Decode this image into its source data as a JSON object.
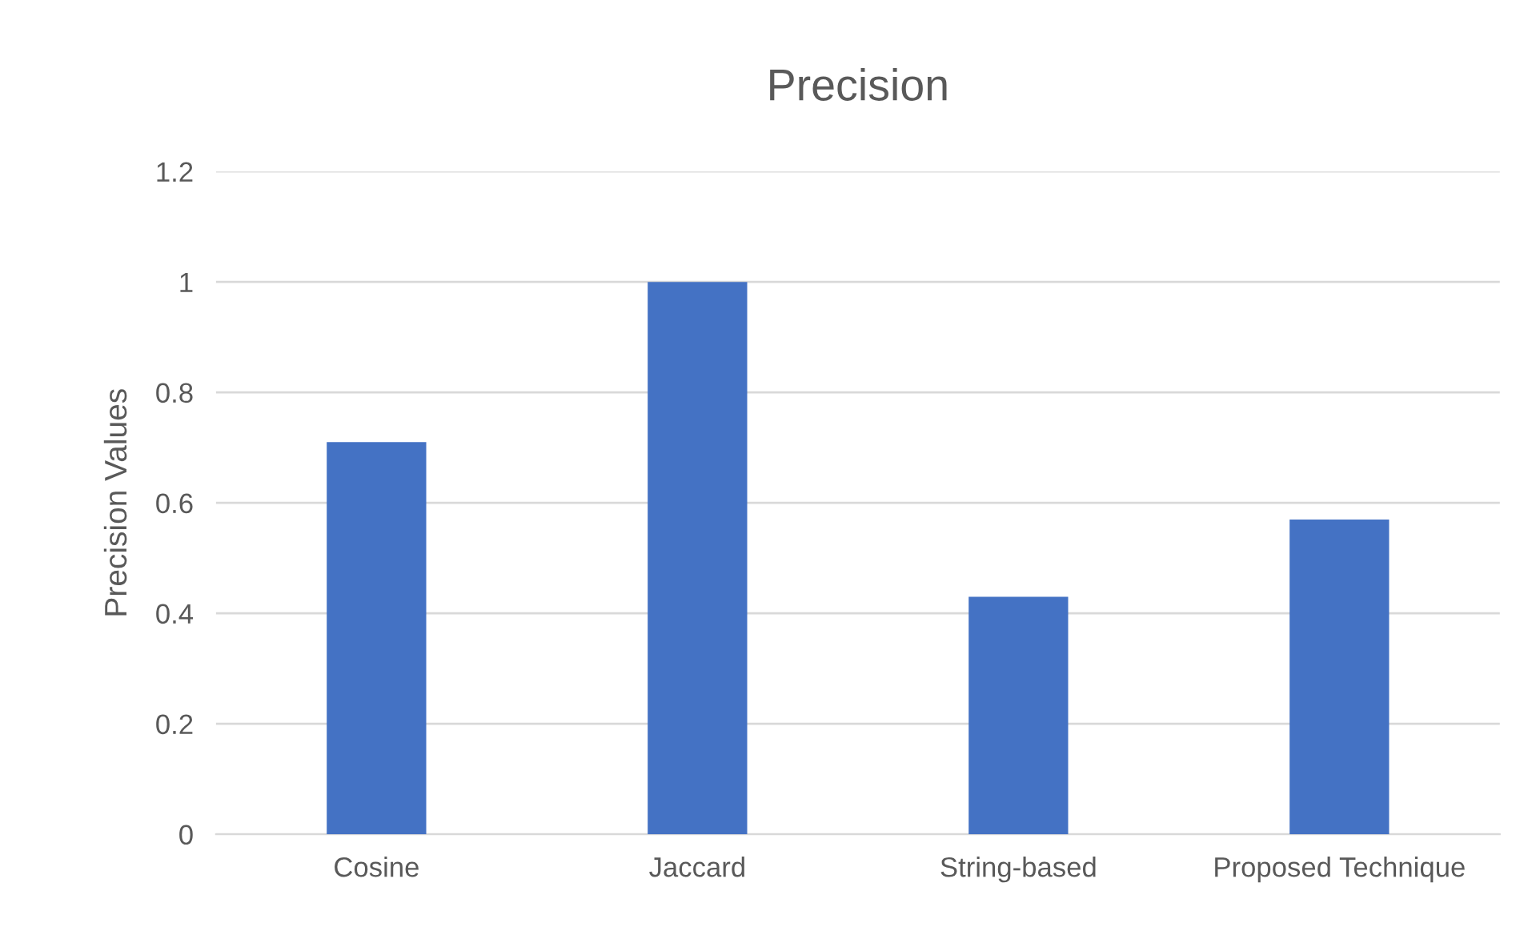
{
  "chart_data": {
    "type": "bar",
    "title": "Precision",
    "ylabel": "Precision Values",
    "categories": [
      "Cosine",
      "Jaccard",
      "String-based",
      "Proposed Technique"
    ],
    "values": [
      0.71,
      1,
      0.43,
      0.57
    ],
    "color": "#4472c4",
    "ylim": [
      0,
      1.2
    ],
    "yticks": [
      0,
      0.2,
      0.4,
      0.6,
      0.8,
      1,
      1.2
    ],
    "grid": "y"
  }
}
